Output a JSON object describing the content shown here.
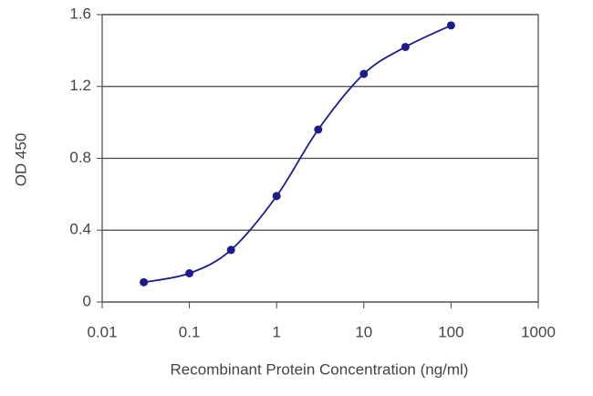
{
  "chart_data": {
    "type": "scatter",
    "x_label": "Recombinant Protein Concentration (ng/ml)",
    "y_label": "OD 450",
    "series": [
      {
        "color": "#1c1c8f",
        "x": [
          0.03,
          0.1,
          0.3,
          1,
          3,
          10,
          30,
          100
        ],
        "values": [
          0.11,
          0.16,
          0.29,
          0.59,
          0.96,
          1.27,
          1.42,
          1.54
        ]
      }
    ],
    "xscale": "log",
    "xlim": [
      0.01,
      1000
    ],
    "xticks": [
      0.01,
      0.1,
      1,
      10,
      100,
      1000
    ],
    "ylim": [
      0,
      1.6
    ],
    "yticks": [
      0,
      0.4,
      0.8,
      1.2,
      1.6
    ],
    "grid": true,
    "smooth_line": true
  }
}
